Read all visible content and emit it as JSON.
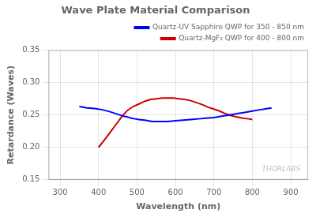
{
  "chart_data": {
    "type": "line",
    "title": "Wave Plate Material Comparison",
    "xlabel": "Wavelength (nm)",
    "ylabel": "Retardance (Waves)",
    "xlim": [
      270,
      945
    ],
    "ylim": [
      0.15,
      0.35
    ],
    "xticks": [
      300,
      400,
      500,
      600,
      700,
      800,
      900
    ],
    "yticks": [
      0.15,
      {
        "value": 0.2,
        "label": "0.20"
      },
      0.25,
      {
        "value": 0.3,
        "label": "0.30"
      },
      0.35
    ],
    "grid": true,
    "legend": "upper right",
    "series": [
      {
        "name": "Quartz-UV Sapphire QWP for 350 - 850 nm",
        "color": "#0000FF",
        "x": [
          350,
          370,
          390,
          410,
          430,
          450,
          465,
          475,
          485,
          495,
          505,
          520,
          540,
          560,
          580,
          600,
          620,
          640,
          660,
          680,
          700,
          720,
          740,
          760,
          780,
          800,
          820,
          840,
          850
        ],
        "values": [
          0.263,
          0.261,
          0.26,
          0.258,
          0.255,
          0.251,
          0.248,
          0.247,
          0.245,
          0.244,
          0.243,
          0.242,
          0.24,
          0.24,
          0.24,
          0.241,
          0.242,
          0.243,
          0.244,
          0.245,
          0.246,
          0.248,
          0.25,
          0.252,
          0.254,
          0.256,
          0.258,
          0.26,
          0.261
        ]
      },
      {
        "name": "Quartz-MgF₂ QWP for 400 - 800 nm",
        "color": "#CC0000",
        "x": [
          400,
          415,
          430,
          445,
          460,
          475,
          490,
          505,
          520,
          535,
          550,
          565,
          580,
          595,
          610,
          625,
          640,
          655,
          670,
          685,
          700,
          715,
          730,
          745,
          760,
          775,
          790,
          800
        ],
        "values": [
          0.2,
          0.211,
          0.223,
          0.235,
          0.247,
          0.257,
          0.263,
          0.267,
          0.271,
          0.274,
          0.275,
          0.276,
          0.276,
          0.276,
          0.275,
          0.274,
          0.272,
          0.269,
          0.266,
          0.262,
          0.259,
          0.256,
          0.252,
          0.249,
          0.247,
          0.245,
          0.244,
          0.243
        ]
      }
    ],
    "annotations": [
      {
        "text": "THORLABS",
        "color": "#C0C0C0"
      }
    ]
  }
}
